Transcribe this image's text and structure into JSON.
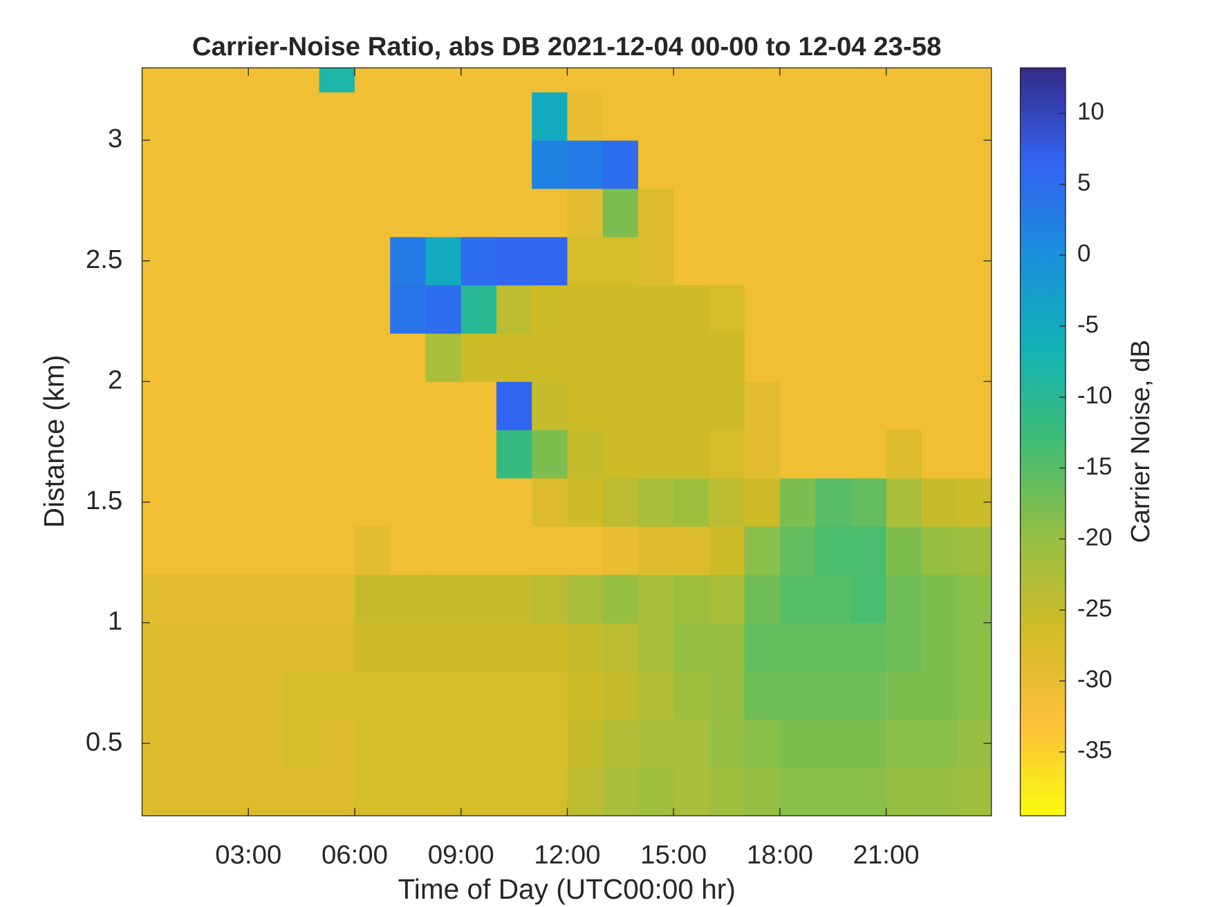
{
  "chart_data": {
    "type": "heatmap",
    "title": "Carrier-Noise Ratio, abs DB 2021-12-04 00-00 to 12-04 23-58",
    "xlabel": "Time of Day (UTC00:00 hr)",
    "ylabel": "Distance (km)",
    "colorbar_label": "Carrier Noise, dB",
    "x": [
      0.5,
      1.5,
      2.5,
      3.5,
      4.5,
      5.5,
      6.5,
      7.5,
      8.5,
      9.5,
      10.5,
      11.5,
      12.5,
      13.5,
      14.5,
      15.5,
      16.5,
      17.5,
      18.5,
      19.5,
      20.5,
      21.5,
      22.5,
      23.5
    ],
    "y": [
      0.3,
      0.5,
      0.7,
      0.9,
      1.1,
      1.3,
      1.5,
      1.7,
      1.9,
      2.1,
      2.3,
      2.5,
      2.7,
      2.9,
      3.1,
      3.3
    ],
    "values": [
      [
        -28,
        -28,
        -28,
        -28,
        -28,
        -28,
        -27,
        -27,
        -27,
        -27,
        -27,
        -27,
        -24,
        -22,
        -21,
        -22,
        -21,
        -20,
        -19,
        -19,
        -19,
        -20,
        -20,
        -21
      ],
      [
        -28,
        -28,
        -28,
        -28,
        -27,
        -28,
        -27,
        -27,
        -27,
        -27,
        -27,
        -27,
        -25,
        -23,
        -22,
        -22,
        -20,
        -19,
        -18,
        -18,
        -18,
        -19,
        -19,
        -20
      ],
      [
        -28,
        -28,
        -28,
        -28,
        -27,
        -27,
        -27,
        -27,
        -27,
        -27,
        -27,
        -27,
        -26,
        -25,
        -23,
        -21,
        -20,
        -17,
        -17,
        -17,
        -17,
        -18,
        -18,
        -19
      ],
      [
        -28,
        -28,
        -28,
        -28,
        -28,
        -28,
        -26,
        -26,
        -26,
        -26,
        -26,
        -26,
        -25,
        -24,
        -22,
        -20,
        -20,
        -16,
        -16,
        -16,
        -16,
        -17,
        -18,
        -19
      ],
      [
        -29,
        -29,
        -29,
        -29,
        -29,
        -29,
        -25,
        -25,
        -25,
        -25,
        -25,
        -24,
        -22,
        -20,
        -22,
        -21,
        -22,
        -17,
        -15,
        -15,
        -14,
        -17,
        -18,
        -19
      ],
      [
        -31,
        -31,
        -31,
        -31,
        -31,
        -31,
        -29,
        -31,
        -31,
        -31,
        -31,
        -31,
        -31,
        -30,
        -28,
        -28,
        -26,
        -19,
        -16,
        -14,
        -14,
        -18,
        -20,
        -21
      ],
      [
        -31,
        -31,
        -31,
        -31,
        -31,
        -31,
        -31,
        -31,
        -31,
        -31,
        -31,
        -28,
        -26,
        -24,
        -22,
        -21,
        -24,
        -26,
        -18,
        -15,
        -16,
        -22,
        -25,
        -26
      ],
      [
        -31,
        -31,
        -31,
        -31,
        -31,
        -31,
        -31,
        -31,
        -31,
        -31,
        -12,
        -18,
        -25,
        -26,
        -26,
        -26,
        -27,
        -29,
        -31,
        -31,
        -31,
        -28,
        -31,
        -31
      ],
      [
        -31,
        -31,
        -31,
        -31,
        -31,
        -31,
        -31,
        -31,
        -31,
        -31,
        6,
        -25,
        -26,
        -26,
        -26,
        -26,
        -26,
        -29,
        -31,
        -31,
        -31,
        -31,
        -31,
        -31
      ],
      [
        -31,
        -31,
        -31,
        -31,
        -31,
        -31,
        -31,
        -31,
        -22,
        -26,
        -26,
        -26,
        -26,
        -26,
        -26,
        -26,
        -26,
        -31,
        -31,
        -31,
        -31,
        -31,
        -31,
        -31
      ],
      [
        -31,
        -31,
        -31,
        -31,
        -31,
        -31,
        -31,
        4,
        5,
        -10,
        -24,
        -26,
        -26,
        -26,
        -26,
        -26,
        -27,
        -31,
        -31,
        -31,
        -31,
        -31,
        -31,
        -31
      ],
      [
        -31,
        -31,
        -31,
        -31,
        -31,
        -31,
        -31,
        3,
        -5,
        5,
        6,
        6,
        -27,
        -27,
        -28,
        -31,
        -31,
        -31,
        -31,
        -31,
        -31,
        -31,
        -31,
        -31
      ],
      [
        -31,
        -31,
        -31,
        -31,
        -31,
        -31,
        -31,
        -31,
        -31,
        -31,
        -31,
        -31,
        -29,
        -18,
        -28,
        -31,
        -31,
        -31,
        -31,
        -31,
        -31,
        -31,
        -31,
        -31
      ],
      [
        -31,
        -31,
        -31,
        -31,
        -31,
        -31,
        -31,
        -31,
        -31,
        -31,
        -31,
        2,
        3,
        5,
        -31,
        -31,
        -31,
        -31,
        -31,
        -31,
        -31,
        -31,
        -31,
        -31
      ],
      [
        -31,
        -31,
        -31,
        -31,
        -31,
        -31,
        -31,
        -31,
        -31,
        -31,
        -31,
        -5,
        -30,
        -31,
        -31,
        -31,
        -31,
        -31,
        -31,
        -31,
        -31,
        -31,
        -31,
        -31
      ],
      [
        -31,
        -31,
        -31,
        -31,
        -31,
        -8,
        -31,
        -31,
        -31,
        -31,
        -31,
        -31,
        -31,
        -31,
        -31,
        -31,
        -31,
        -31,
        -31,
        -31,
        -31,
        -31,
        -31,
        -31
      ]
    ],
    "xlim": [
      0,
      23.97
    ],
    "xticks": [
      {
        "value": 3,
        "label": "03:00"
      },
      {
        "value": 6,
        "label": "06:00"
      },
      {
        "value": 9,
        "label": "09:00"
      },
      {
        "value": 12,
        "label": "12:00"
      },
      {
        "value": 15,
        "label": "15:00"
      },
      {
        "value": 18,
        "label": "18:00"
      },
      {
        "value": 21,
        "label": "21:00"
      }
    ],
    "ylim": [
      0.2,
      3.3
    ],
    "yticks": [
      0.5,
      1,
      1.5,
      2,
      2.5,
      3
    ],
    "clim": [
      -39.5,
      13.2
    ],
    "cticks": [
      -35,
      -30,
      -25,
      -20,
      -15,
      -10,
      -5,
      0,
      5,
      10
    ],
    "colormap": [
      "#f9fb0e",
      "#fcc03a",
      "#d1bb27",
      "#94bf44",
      "#3fbc74",
      "#12b3b6",
      "#1a8fdc",
      "#3362f2",
      "#352a87"
    ]
  }
}
